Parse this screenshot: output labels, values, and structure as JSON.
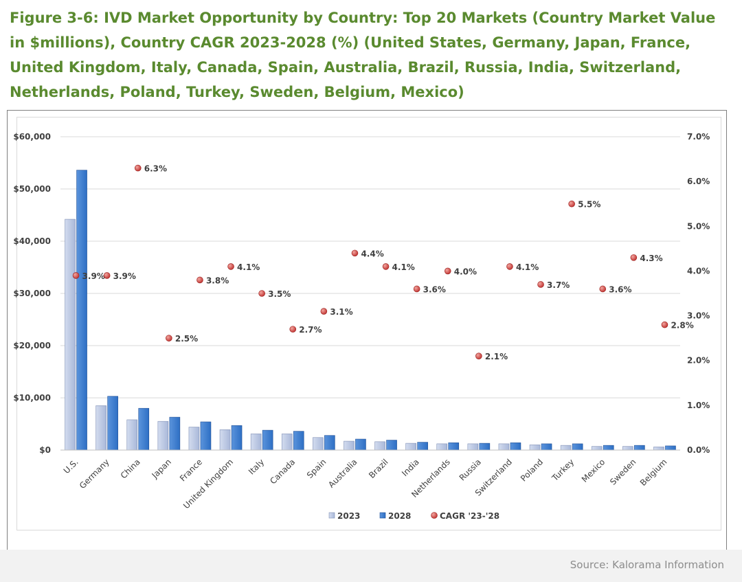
{
  "title": "Figure 3-6: IVD Market Opportunity by Country: Top 20 Markets (Country Market Value in $millions), Country CAGR 2023-2028 (%) (United States, Germany, Japan, France, United Kingdom, Italy, Canada, Spain, Australia, Brazil, Russia, India, Switzerland, Netherlands, Poland, Turkey, Sweden, Belgium, Mexico)",
  "source": "Source: Kalorama Information",
  "colors": {
    "title": "#5a8a2f",
    "bar2023": "#a9b8d9",
    "bar2028": "#2e6fc4",
    "cagr": "#c0302e"
  },
  "chart_data": {
    "type": "bar",
    "categories": [
      "U.S.",
      "Germany",
      "China",
      "Japan",
      "France",
      "United Kingdom",
      "Italy",
      "Canada",
      "Spain",
      "Australia",
      "Brazil",
      "India",
      "Netherlands",
      "Russia",
      "Switzerland",
      "Poland",
      "Turkey",
      "Mexico",
      "Sweden",
      "Belgium"
    ],
    "series": [
      {
        "name": "2023",
        "axis": "left",
        "values": [
          44200,
          8500,
          5800,
          5500,
          4400,
          3900,
          3100,
          3100,
          2400,
          1700,
          1600,
          1300,
          1200,
          1200,
          1200,
          1000,
          900,
          700,
          700,
          600
        ]
      },
      {
        "name": "2028",
        "axis": "left",
        "values": [
          53600,
          10300,
          8000,
          6300,
          5400,
          4700,
          3800,
          3600,
          2800,
          2100,
          1900,
          1500,
          1400,
          1300,
          1400,
          1200,
          1200,
          900,
          900,
          800
        ]
      },
      {
        "name": "CAGR '23-'28",
        "axis": "right",
        "type": "scatter",
        "values": [
          3.9,
          3.9,
          6.3,
          2.5,
          3.8,
          4.1,
          3.5,
          2.7,
          3.1,
          4.4,
          4.1,
          3.6,
          4.0,
          2.1,
          4.1,
          3.7,
          5.5,
          3.6,
          4.3,
          2.8
        ]
      }
    ],
    "left_axis": {
      "min": 0,
      "max": 60000,
      "step": 10000,
      "ticks": [
        "$0",
        "$10,000",
        "$20,000",
        "$30,000",
        "$40,000",
        "$50,000",
        "$60,000"
      ]
    },
    "right_axis": {
      "min": 0,
      "max": 7,
      "step": 1,
      "ticks": [
        "0.0%",
        "1.0%",
        "2.0%",
        "3.0%",
        "4.0%",
        "5.0%",
        "6.0%",
        "7.0%"
      ]
    },
    "data_labels": [
      "3.9%",
      "3.9%",
      "6.3%",
      "2.5%",
      "3.8%",
      "4.1%",
      "3.5%",
      "2.7%",
      "3.1%",
      "4.4%",
      "4.1%",
      "3.6%",
      "4.0%",
      "2.1%",
      "4.1%",
      "3.7%",
      "5.5%",
      "3.6%",
      "4.3%",
      "2.8%"
    ],
    "legend": [
      "2023",
      "2028",
      "CAGR '23-'28"
    ],
    "legend_position": "bottom",
    "grid": true
  }
}
